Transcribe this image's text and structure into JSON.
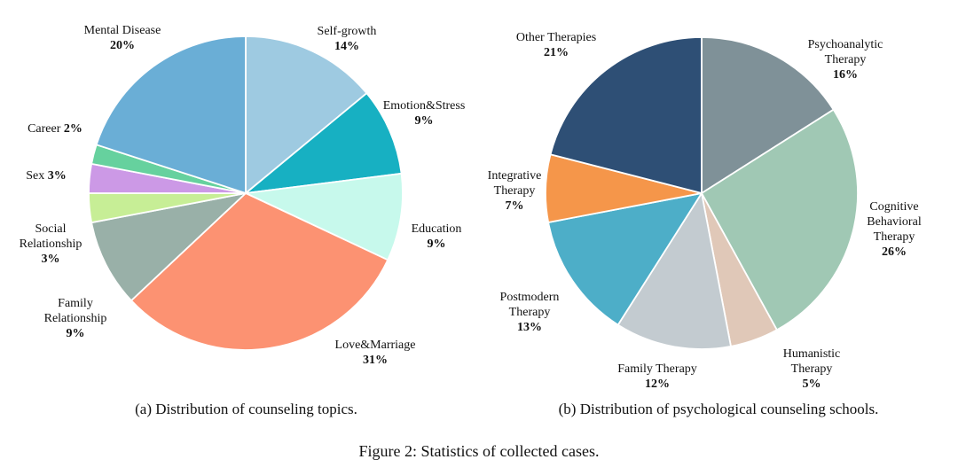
{
  "figure_caption": "Figure 2: Statistics of collected cases.",
  "chart_data": [
    {
      "type": "pie",
      "caption": "(a) Distribution of counseling topics.",
      "slices": [
        {
          "label": "Self-growth",
          "value": 14,
          "pct_text": "14%",
          "color": "#9ecae1",
          "label_lines": [
            "Self-growth"
          ]
        },
        {
          "label": "Emotion&Stress",
          "value": 9,
          "pct_text": "9%",
          "color": "#17b0c2",
          "label_lines": [
            "Emotion&Stress"
          ]
        },
        {
          "label": "Education",
          "value": 9,
          "pct_text": "9%",
          "color": "#c7f9ec",
          "label_lines": [
            "Education"
          ]
        },
        {
          "label": "Love&Marriage",
          "value": 31,
          "pct_text": "31%",
          "color": "#fc9272",
          "label_lines": [
            "Love&Marriage"
          ]
        },
        {
          "label": "Family Relationship",
          "value": 9,
          "pct_text": "9%",
          "color": "#99b0a8",
          "label_lines": [
            "Family",
            "Relationship"
          ]
        },
        {
          "label": "Social Relationship",
          "value": 3,
          "pct_text": "3%",
          "color": "#c7ee96",
          "label_lines": [
            "Social",
            "Relationship"
          ]
        },
        {
          "label": "Sex",
          "value": 3,
          "pct_text": "3%",
          "color": "#cc99e6",
          "label_lines": [
            "Sex"
          ],
          "inline": true
        },
        {
          "label": "Career",
          "value": 2,
          "pct_text": "2%",
          "color": "#66d19e",
          "label_lines": [
            "Career"
          ],
          "inline": true
        },
        {
          "label": "Mental Disease",
          "value": 20,
          "pct_text": "20%",
          "color": "#6aaed6",
          "label_lines": [
            "Mental Disease"
          ]
        }
      ]
    },
    {
      "type": "pie",
      "caption": "(b) Distribution of psychological counseling schools.",
      "slices": [
        {
          "label": "Psychoanalytic Therapy",
          "value": 16,
          "pct_text": "16%",
          "color": "#7f9198",
          "label_lines": [
            "Psychoanalytic",
            "Therapy"
          ]
        },
        {
          "label": "Cognitive Behavioral Therapy",
          "value": 26,
          "pct_text": "26%",
          "color": "#a0c8b4",
          "label_lines": [
            "Cognitive",
            "Behavioral",
            "Therapy"
          ]
        },
        {
          "label": "Humanistic Therapy",
          "value": 5,
          "pct_text": "5%",
          "color": "#e0c8b8",
          "label_lines": [
            "Humanistic",
            "Therapy"
          ]
        },
        {
          "label": "Family Therapy",
          "value": 12,
          "pct_text": "12%",
          "color": "#c3cbd0",
          "label_lines": [
            "Family Therapy"
          ]
        },
        {
          "label": "Postmodern Therapy",
          "value": 13,
          "pct_text": "13%",
          "color": "#4daec8",
          "label_lines": [
            "Postmodern",
            "Therapy"
          ]
        },
        {
          "label": "Integrative Therapy",
          "value": 7,
          "pct_text": "7%",
          "color": "#f5964a",
          "label_lines": [
            "Integrative",
            "Therapy"
          ]
        },
        {
          "label": "Other Therapies",
          "value": 21,
          "pct_text": "21%",
          "color": "#2e4f75",
          "label_lines": [
            "Other Therapies"
          ]
        }
      ]
    }
  ]
}
